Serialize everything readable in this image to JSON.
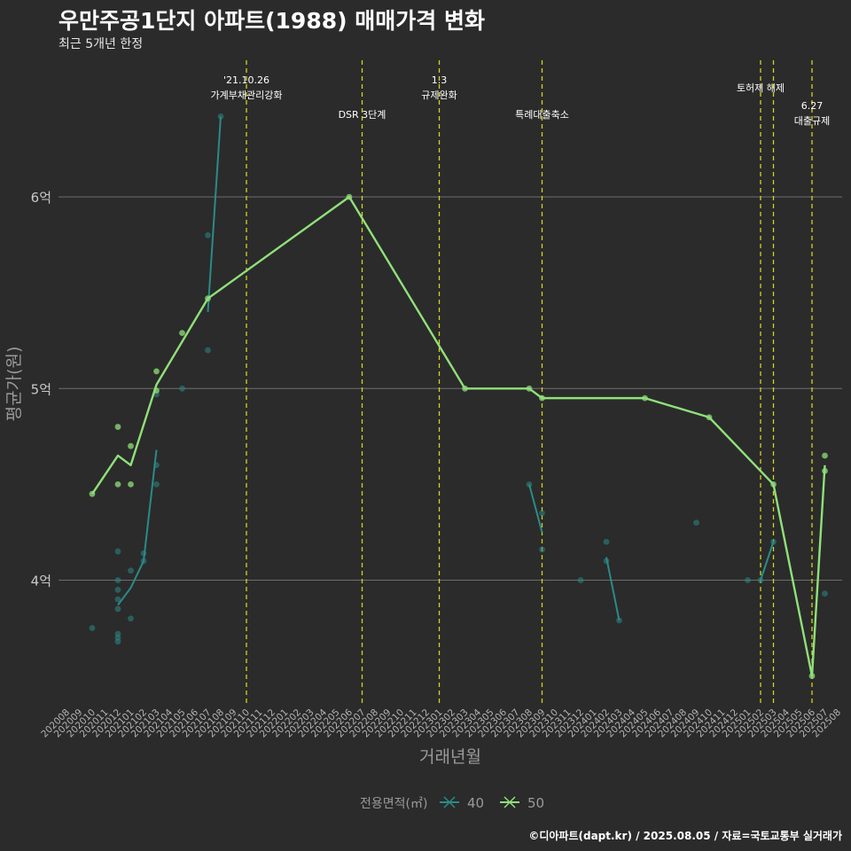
{
  "title": "우만주공1단지 아파트(1988) 매매가격 변화",
  "subtitle": "최근 5개년 한정",
  "caption": "©디아파트(dapt.kr) / 2025.08.05 / 자료=국토교통부 실거래가",
  "colors": {
    "background": "#2b2b2b",
    "grid": "#6e6e6e",
    "event_line": "#d4d41c",
    "series_40": "#2a8b88",
    "series_50": "#90e07a",
    "axis_text": "#9a9a9a"
  },
  "chart_data": {
    "type": "line",
    "xlabel": "거래년월",
    "ylabel": "평균가(원)",
    "legend_title": "전용면적(㎡)",
    "legend_position": "bottom",
    "categories": [
      "202008",
      "202009",
      "202010",
      "202011",
      "202012",
      "202101",
      "202102",
      "202103",
      "202104",
      "202105",
      "202106",
      "202107",
      "202108",
      "202109",
      "202110",
      "202111",
      "202112",
      "202201",
      "202202",
      "202203",
      "202204",
      "202205",
      "202206",
      "202207",
      "202208",
      "202209",
      "202210",
      "202211",
      "202212",
      "202301",
      "202302",
      "202303",
      "202304",
      "202305",
      "202306",
      "202307",
      "202308",
      "202309",
      "202310",
      "202311",
      "202312",
      "202401",
      "202402",
      "202403",
      "202404",
      "202405",
      "202406",
      "202407",
      "202408",
      "202409",
      "202410",
      "202411",
      "202412",
      "202501",
      "202502",
      "202503",
      "202504",
      "202505",
      "202506",
      "202507",
      "202508"
    ],
    "y_ticks": [
      {
        "value": 4.0,
        "label": "4억"
      },
      {
        "value": 5.0,
        "label": "5억"
      },
      {
        "value": 6.0,
        "label": "6억"
      }
    ],
    "ylim": [
      3.35,
      6.75
    ],
    "series": [
      {
        "name": "40",
        "color": "#2a8b88",
        "segments": [
          [
            [
              "202012",
              3.87
            ],
            [
              "202101",
              3.96
            ],
            [
              "202102",
              4.1
            ],
            [
              "202103",
              4.68
            ]
          ],
          [
            [
              "202107",
              5.4
            ],
            [
              "202108",
              6.42
            ]
          ],
          [
            [
              "202308",
              4.5
            ],
            [
              "202309",
              4.25
            ]
          ],
          [
            [
              "202402",
              4.12
            ],
            [
              "202403",
              3.79
            ]
          ],
          [
            [
              "202502",
              4.0
            ],
            [
              "202503",
              4.2
            ]
          ]
        ],
        "points": [
          [
            "202010",
            3.75
          ],
          [
            "202012",
            3.68
          ],
          [
            "202012",
            3.7
          ],
          [
            "202012",
            3.72
          ],
          [
            "202012",
            3.85
          ],
          [
            "202012",
            3.9
          ],
          [
            "202012",
            3.95
          ],
          [
            "202012",
            4.0
          ],
          [
            "202012",
            4.15
          ],
          [
            "202101",
            3.8
          ],
          [
            "202101",
            4.05
          ],
          [
            "202102",
            4.1
          ],
          [
            "202102",
            4.14
          ],
          [
            "202103",
            4.5
          ],
          [
            "202103",
            4.6
          ],
          [
            "202103",
            4.97
          ],
          [
            "202105",
            5.0
          ],
          [
            "202107",
            5.2
          ],
          [
            "202107",
            5.8
          ],
          [
            "202108",
            6.42
          ],
          [
            "202308",
            4.5
          ],
          [
            "202309",
            4.16
          ],
          [
            "202309",
            4.35
          ],
          [
            "202312",
            4.0
          ],
          [
            "202402",
            4.1
          ],
          [
            "202402",
            4.2
          ],
          [
            "202403",
            3.79
          ],
          [
            "202409",
            4.3
          ],
          [
            "202501",
            4.0
          ],
          [
            "202502",
            4.0
          ],
          [
            "202503",
            4.2
          ],
          [
            "202507",
            3.93
          ]
        ]
      },
      {
        "name": "50",
        "color": "#90e07a",
        "segments": [
          [
            [
              "202010",
              4.45
            ],
            [
              "202012",
              4.65
            ],
            [
              "202101",
              4.6
            ],
            [
              "202103",
              5.02
            ],
            [
              "202107",
              5.47
            ],
            [
              "202206",
              6.0
            ],
            [
              "202303",
              5.0
            ],
            [
              "202308",
              5.0
            ],
            [
              "202309",
              4.95
            ],
            [
              "202405",
              4.95
            ],
            [
              "202410",
              4.85
            ],
            [
              "202503",
              4.5
            ],
            [
              "202506",
              3.5
            ],
            [
              "202507",
              4.6
            ]
          ]
        ],
        "points": [
          [
            "202010",
            4.45
          ],
          [
            "202012",
            4.5
          ],
          [
            "202012",
            4.8
          ],
          [
            "202101",
            4.5
          ],
          [
            "202101",
            4.7
          ],
          [
            "202103",
            4.99
          ],
          [
            "202103",
            5.09
          ],
          [
            "202105",
            5.29
          ],
          [
            "202107",
            5.47
          ],
          [
            "202206",
            6.0
          ],
          [
            "202303",
            5.0
          ],
          [
            "202308",
            5.0
          ],
          [
            "202309",
            4.95
          ],
          [
            "202405",
            4.95
          ],
          [
            "202410",
            4.85
          ],
          [
            "202503",
            4.5
          ],
          [
            "202506",
            3.5
          ],
          [
            "202507",
            4.57
          ],
          [
            "202507",
            4.65
          ]
        ]
      }
    ],
    "events": [
      {
        "month": "202110",
        "label1": "'21.10.26",
        "label2": "가계부채관리강화"
      },
      {
        "month": "202207",
        "label1": "DSR 3단계",
        "label2": ""
      },
      {
        "month": "202301",
        "label1": "1.3",
        "label2": "규제완화"
      },
      {
        "month": "202309",
        "label1": "특례대출축소",
        "label2": ""
      },
      {
        "month": "202502",
        "label1": "토허제 해제",
        "label2": ""
      },
      {
        "month": "202503",
        "label1": "",
        "label2": ""
      },
      {
        "month": "202506",
        "label1": "6.27",
        "label2": "대출규제"
      }
    ]
  }
}
